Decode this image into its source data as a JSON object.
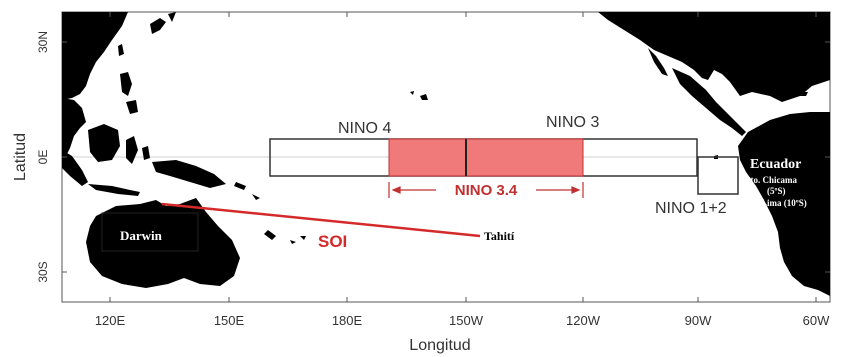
{
  "map": {
    "axes": {
      "xlabel": "Longitud",
      "ylabel": "Latitud",
      "x_ticks": [
        "120E",
        "150E",
        "180E",
        "150W",
        "120W",
        "90W",
        "60W"
      ],
      "y_ticks": [
        "30N",
        "0E",
        "30S"
      ]
    },
    "regions": {
      "nino4": "NINO 4",
      "nino3": "NINO 3",
      "nino34": "NINO 3.4",
      "nino12": "NINO 1+2"
    },
    "places": {
      "darwin": "Darwin",
      "tahiti": "Tahití",
      "ecuador": "Ecuador",
      "pto_chicama": "Pto. Chicama",
      "pto_chicama_lat": "(5ºS)",
      "lima": "Lima (10ºS)"
    },
    "soi_label": "SOI",
    "colors": {
      "land": "#000000",
      "ocean": "#ffffff",
      "nino34_fill": "#f07a7a",
      "soi_line": "#d42a2a",
      "frame": "#444444"
    }
  }
}
